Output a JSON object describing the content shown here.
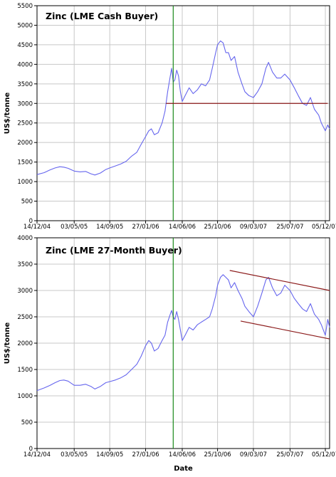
{
  "chart_data": [
    {
      "type": "line",
      "title": "Zinc (LME Cash Buyer)",
      "ylabel": "US$/tonne",
      "xlabel": "",
      "ylim": [
        0,
        5500
      ],
      "yticks": [
        0,
        500,
        1000,
        1500,
        2000,
        2500,
        3000,
        3500,
        4000,
        4500,
        5000,
        5500
      ],
      "xlim": [
        "2004-12-14",
        "2007-12-21"
      ],
      "xticks": [
        "14/12/04",
        "03/05/05",
        "14/09/05",
        "27/01/06",
        "14/06/06",
        "25/10/06",
        "09/03/07",
        "25/07/07",
        "05/12/07"
      ],
      "grid": true,
      "colors": {
        "series": "#6666ee",
        "trendline": "#8b1a1a",
        "marker": "#1a8a1a"
      },
      "series": [
        {
          "x": [
            "2004-12-14",
            "2005-01-10",
            "2005-02-01",
            "2005-02-20",
            "2005-03-10",
            "2005-03-25",
            "2005-04-10",
            "2005-05-03",
            "2005-05-25",
            "2005-06-15",
            "2005-07-05",
            "2005-07-20",
            "2005-08-10",
            "2005-08-30",
            "2005-09-14",
            "2005-10-05",
            "2005-10-25",
            "2005-11-15",
            "2005-12-05",
            "2005-12-25",
            "2006-01-10",
            "2006-01-27",
            "2006-02-08",
            "2006-02-18",
            "2006-03-01",
            "2006-03-15",
            "2006-03-30",
            "2006-04-10",
            "2006-04-20",
            "2006-04-30",
            "2006-05-05",
            "2006-05-11",
            "2006-05-17",
            "2006-05-24",
            "2006-05-31",
            "2006-06-07",
            "2006-06-14",
            "2006-06-25",
            "2006-07-10",
            "2006-07-25",
            "2006-08-10",
            "2006-08-25",
            "2006-09-10",
            "2006-09-25",
            "2006-10-05",
            "2006-10-18",
            "2006-10-25",
            "2006-11-05",
            "2006-11-15",
            "2006-11-25",
            "2006-12-05",
            "2006-12-15",
            "2006-12-28",
            "2007-01-10",
            "2007-01-25",
            "2007-02-05",
            "2007-02-20",
            "2007-03-09",
            "2007-03-25",
            "2007-04-10",
            "2007-04-25",
            "2007-05-05",
            "2007-05-20",
            "2007-06-05",
            "2007-06-20",
            "2007-07-05",
            "2007-07-25",
            "2007-08-10",
            "2007-08-25",
            "2007-09-10",
            "2007-09-25",
            "2007-10-10",
            "2007-10-25",
            "2007-11-10",
            "2007-11-20",
            "2007-12-05",
            "2007-12-14",
            "2007-12-21"
          ],
          "y": [
            1180,
            1230,
            1300,
            1350,
            1380,
            1370,
            1340,
            1270,
            1250,
            1260,
            1200,
            1170,
            1220,
            1310,
            1350,
            1400,
            1450,
            1520,
            1650,
            1750,
            1950,
            2150,
            2300,
            2350,
            2200,
            2250,
            2500,
            2800,
            3300,
            3700,
            3900,
            3550,
            3600,
            3850,
            3700,
            3300,
            3050,
            3200,
            3400,
            3250,
            3350,
            3500,
            3450,
            3600,
            3900,
            4300,
            4500,
            4600,
            4550,
            4300,
            4300,
            4100,
            4200,
            3800,
            3500,
            3300,
            3200,
            3150,
            3300,
            3500,
            3900,
            4050,
            3800,
            3650,
            3650,
            3750,
            3600,
            3400,
            3200,
            3000,
            2950,
            3150,
            2850,
            2700,
            2500,
            2300,
            2450,
            2350
          ]
        }
      ],
      "annotations": [
        {
          "type": "vertical_line",
          "x": "2006-05-11"
        },
        {
          "type": "trendline",
          "from": [
            "2006-04-14",
            3000
          ],
          "to": [
            "2007-12-14",
            3000
          ]
        }
      ]
    },
    {
      "type": "line",
      "title": "Zinc (LME 27-Month Buyer)",
      "ylabel": "US$/tonne",
      "xlabel": "Date",
      "ylim": [
        0,
        4000
      ],
      "yticks": [
        0,
        500,
        1000,
        1500,
        2000,
        2500,
        3000,
        3500,
        4000
      ],
      "xlim": [
        "2004-12-14",
        "2007-12-21"
      ],
      "xticks": [
        "14/12/04",
        "03/05/05",
        "14/09/05",
        "27/01/06",
        "14/06/06",
        "25/10/06",
        "09/03/07",
        "25/07/07",
        "05/12/07"
      ],
      "grid": true,
      "colors": {
        "series": "#6666ee",
        "trendline": "#8b1a1a",
        "marker": "#1a8a1a"
      },
      "series": [
        {
          "x": [
            "2004-12-14",
            "2005-01-10",
            "2005-02-01",
            "2005-02-20",
            "2005-03-10",
            "2005-03-25",
            "2005-04-10",
            "2005-05-03",
            "2005-05-25",
            "2005-06-15",
            "2005-07-05",
            "2005-07-20",
            "2005-08-10",
            "2005-08-30",
            "2005-09-14",
            "2005-10-05",
            "2005-10-25",
            "2005-11-15",
            "2005-12-05",
            "2005-12-25",
            "2006-01-10",
            "2006-01-27",
            "2006-02-08",
            "2006-02-18",
            "2006-03-01",
            "2006-03-15",
            "2006-03-30",
            "2006-04-10",
            "2006-04-20",
            "2006-04-30",
            "2006-05-05",
            "2006-05-11",
            "2006-05-17",
            "2006-05-24",
            "2006-05-31",
            "2006-06-07",
            "2006-06-14",
            "2006-06-25",
            "2006-07-10",
            "2006-07-25",
            "2006-08-10",
            "2006-08-25",
            "2006-09-10",
            "2006-09-25",
            "2006-10-05",
            "2006-10-18",
            "2006-10-25",
            "2006-11-05",
            "2006-11-15",
            "2006-11-25",
            "2006-12-05",
            "2006-12-15",
            "2006-12-28",
            "2007-01-10",
            "2007-01-25",
            "2007-02-05",
            "2007-02-20",
            "2007-03-09",
            "2007-03-25",
            "2007-04-10",
            "2007-04-25",
            "2007-05-05",
            "2007-05-20",
            "2007-06-05",
            "2007-06-20",
            "2007-07-05",
            "2007-07-25",
            "2007-08-10",
            "2007-08-25",
            "2007-09-10",
            "2007-09-25",
            "2007-10-10",
            "2007-10-25",
            "2007-11-10",
            "2007-11-20",
            "2007-12-05",
            "2007-12-14",
            "2007-12-21"
          ],
          "y": [
            1100,
            1150,
            1200,
            1250,
            1290,
            1300,
            1280,
            1200,
            1200,
            1220,
            1180,
            1130,
            1180,
            1250,
            1270,
            1300,
            1340,
            1400,
            1500,
            1600,
            1750,
            1950,
            2050,
            2000,
            1850,
            1900,
            2050,
            2150,
            2400,
            2550,
            2620,
            2500,
            2450,
            2600,
            2450,
            2250,
            2050,
            2150,
            2300,
            2250,
            2350,
            2400,
            2450,
            2500,
            2650,
            2900,
            3100,
            3250,
            3300,
            3250,
            3200,
            3050,
            3150,
            3000,
            2850,
            2700,
            2600,
            2500,
            2700,
            2950,
            3200,
            3250,
            3050,
            2900,
            2950,
            3100,
            3000,
            2850,
            2750,
            2650,
            2600,
            2750,
            2550,
            2450,
            2350,
            2150,
            2450,
            2300
          ]
        }
      ],
      "annotations": [
        {
          "type": "vertical_line",
          "x": "2006-05-11"
        },
        {
          "type": "trendline",
          "from": [
            "2006-12-10",
            3380
          ],
          "to": [
            "2007-12-21",
            3000
          ]
        },
        {
          "type": "trendline",
          "from": [
            "2007-01-20",
            2420
          ],
          "to": [
            "2007-12-21",
            2080
          ]
        }
      ]
    }
  ]
}
